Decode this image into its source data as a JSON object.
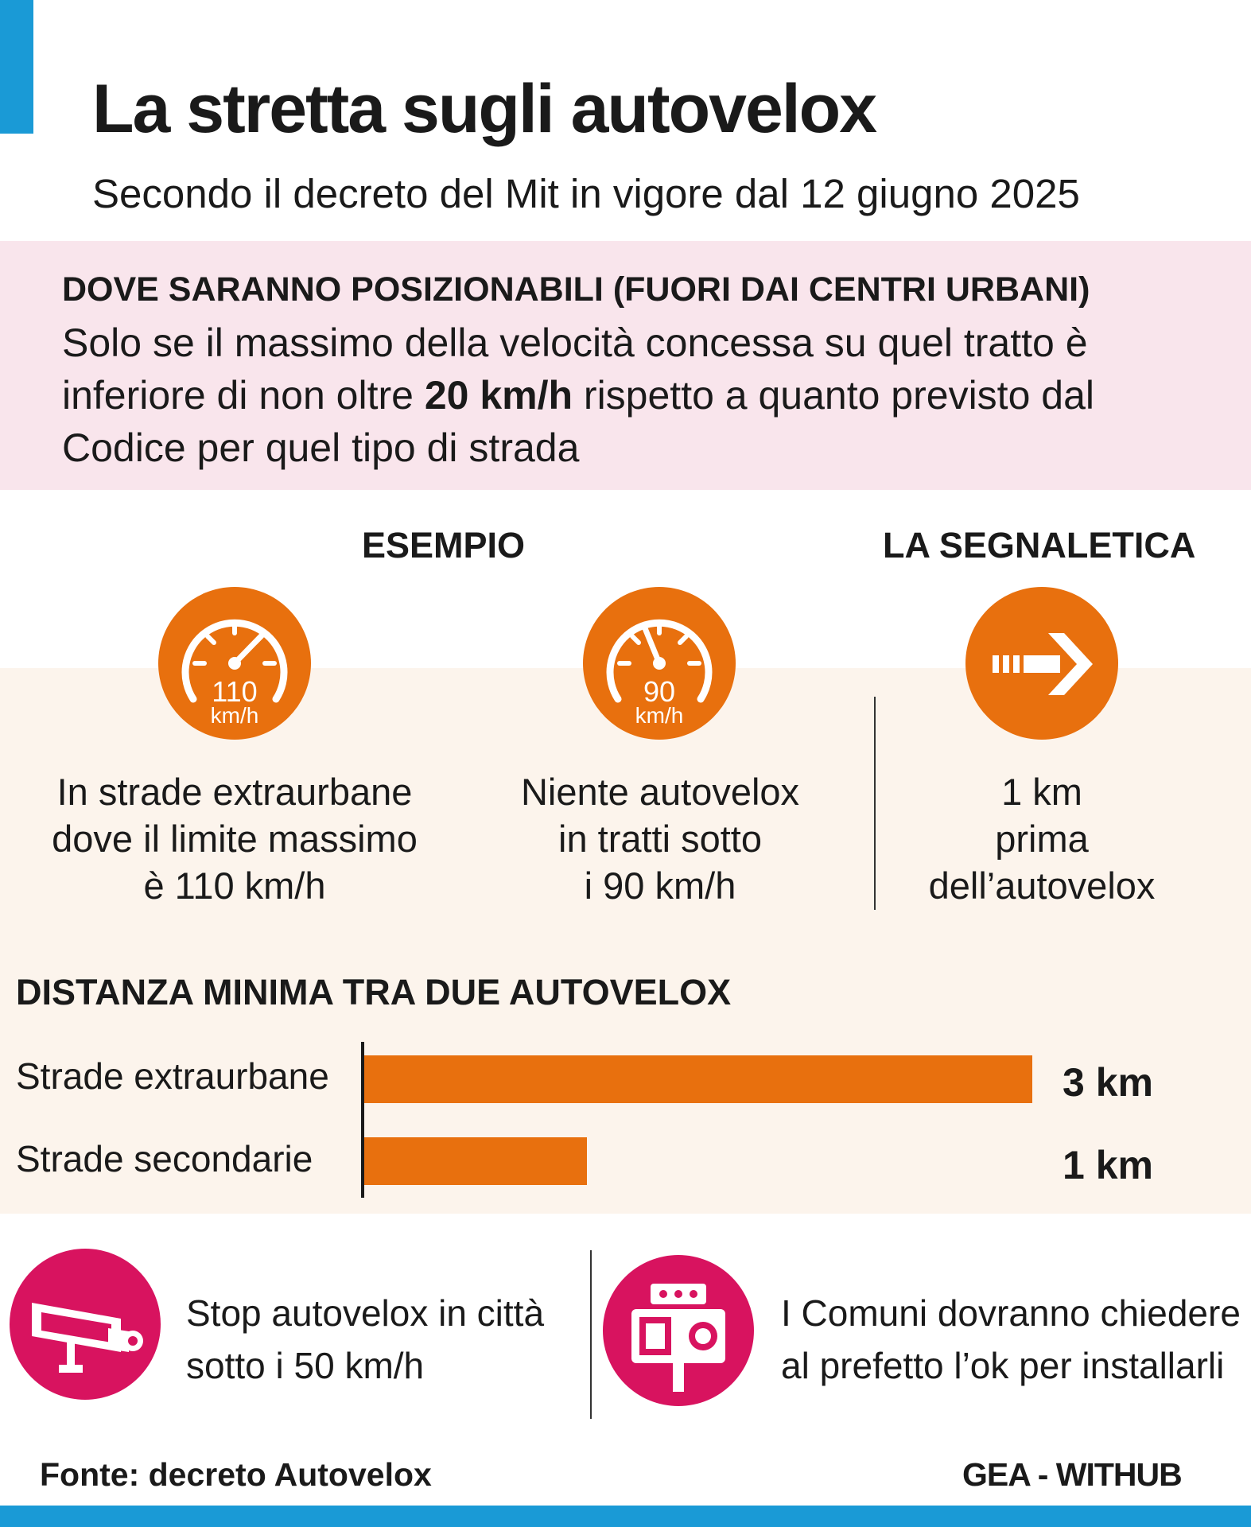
{
  "header": {
    "title": "La stretta sugli autovelox",
    "subtitle": "Secondo il decreto del Mit in vigore dal 12 giugno 2025"
  },
  "placement": {
    "heading": "DOVE SARANNO POSIZIONABILI (FUORI DAI CENTRI URBANI)",
    "text_before": "Solo se il massimo della velocità concessa su quel tratto è inferiore di non oltre ",
    "text_bold": "20 km/h",
    "text_after": " rispetto a quanto previsto dal Codice per quel tipo di strada"
  },
  "example": {
    "heading": "ESEMPIO",
    "items": [
      {
        "speed": "110",
        "unit": "km/h",
        "icon": "speedometer-icon",
        "caption_lines": [
          "In strade extraurbane",
          "dove il limite massimo",
          "è 110 km/h"
        ]
      },
      {
        "speed": "90",
        "unit": "km/h",
        "icon": "speedometer-icon",
        "caption_lines": [
          "Niente autovelox",
          "in tratti sotto",
          "i 90 km/h"
        ]
      }
    ]
  },
  "signage": {
    "heading": "LA SEGNALETICA",
    "icon": "arrow-right-icon",
    "caption_lines": [
      "1 km",
      "prima",
      "dell’autovelox"
    ]
  },
  "chart_data": {
    "type": "bar",
    "title": "DISTANZA MINIMA TRA DUE AUTOVELOX",
    "categories": [
      "Strade extraurbane",
      "Strade secondarie"
    ],
    "values": [
      3,
      1
    ],
    "value_labels": [
      "3 km",
      "1 km"
    ],
    "orientation": "horizontal",
    "xlim": [
      0,
      3
    ],
    "grid": false
  },
  "bottom": {
    "left": {
      "icon": "speed-camera-icon",
      "lines": [
        "Stop autovelox in città",
        "sotto i 50 km/h"
      ]
    },
    "right": {
      "icon": "speed-camera-icon",
      "lines": [
        "I Comuni dovranno chiedere",
        "al prefetto l’ok per installarli"
      ]
    }
  },
  "footer": {
    "source": "Fonte: decreto Autovelox",
    "credit": "GEA - WITHUB"
  },
  "colors": {
    "accent_blue": "#1a9ad6",
    "orange": "#e8700e",
    "magenta": "#d8135f",
    "pink_bg": "#f9e5ec",
    "cream_bg": "#fcf4ec"
  }
}
